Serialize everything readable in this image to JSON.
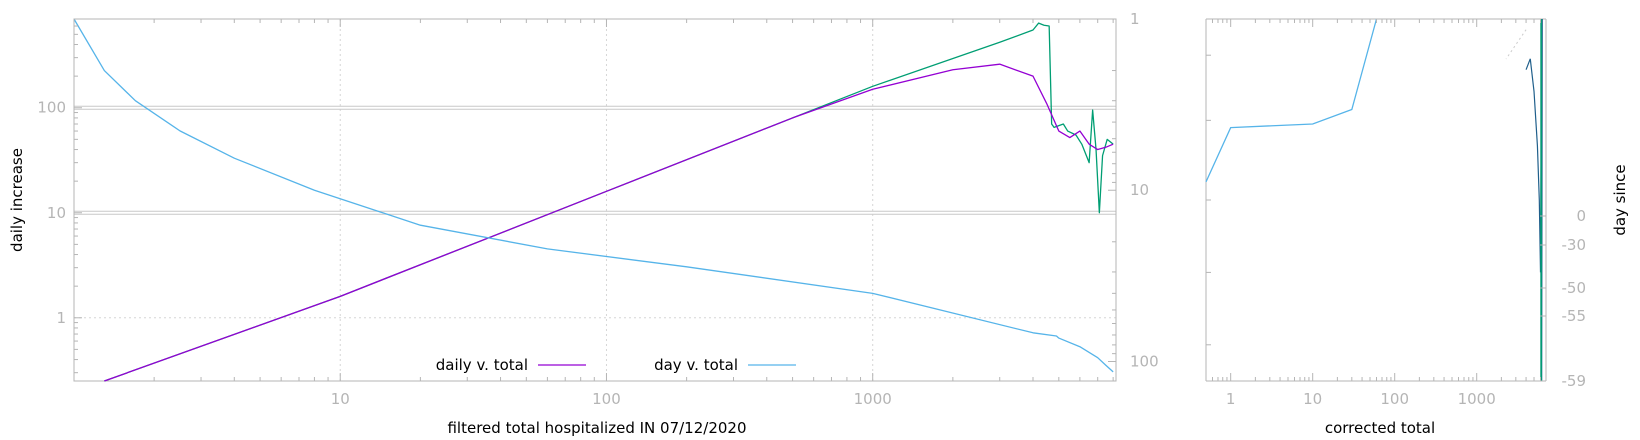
{
  "colors": {
    "axis": "#b5b5b5",
    "grid": "#d6d6d6",
    "daily_v_total": "#9400d3",
    "day_v_total": "#56b4e9",
    "raw_daily": "#009e73",
    "blend": "#1f5f8b"
  },
  "chart_data": [
    {
      "type": "line",
      "title": "",
      "xlabel": "filtered total hospitalized IN 07/12/2020",
      "ylabel": "daily increase",
      "y2label": "",
      "xscale": "log",
      "yscale": "log",
      "y2scale": "log",
      "y2reversed": true,
      "xlim": [
        1,
        8200
      ],
      "ylim": [
        0.25,
        700
      ],
      "y2lim": [
        1,
        130
      ],
      "xticks": [
        10,
        100,
        1000
      ],
      "xtick_labels": [
        "10",
        "100",
        "1000"
      ],
      "yticks": [
        1,
        10,
        100
      ],
      "ytick_labels": [
        "1",
        "10",
        "100"
      ],
      "y2ticks": [
        1,
        10,
        100
      ],
      "y2tick_labels": [
        "1",
        "10",
        "100"
      ],
      "grid": true,
      "legend_position": "bottom-center",
      "series": [
        {
          "name": "daily v. total",
          "axis": "y",
          "x": [
            1.3,
            10,
            100,
            500,
            1000,
            2000,
            3000,
            4000,
            4500,
            5000,
            5500,
            6000,
            6500,
            7000,
            7500,
            8000
          ],
          "y": [
            0.24,
            1.6,
            16,
            80,
            150,
            230,
            260,
            200,
            110,
            60,
            52,
            60,
            45,
            40,
            42,
            45
          ]
        },
        {
          "name": "day v. total",
          "axis": "y2",
          "x": [
            1,
            1.3,
            1.7,
            2.5,
            4,
            8,
            20,
            60,
            200,
            1000,
            4000,
            4900,
            5000,
            6000,
            7000,
            7500,
            8000
          ],
          "y2": [
            1,
            2,
            3,
            4.5,
            6.5,
            10,
            16,
            22,
            28,
            40,
            68,
            71,
            73,
            82,
            95,
            105,
            115
          ]
        },
        {
          "name": "",
          "axis": "y",
          "x": [
            1.3,
            10,
            100,
            1000,
            3000,
            4000,
            4200,
            4400,
            4600,
            4700,
            4800,
            5200,
            5400,
            5800,
            6100,
            6500,
            6700,
            6900,
            7100,
            7300,
            7600,
            8000
          ],
          "y": [
            0.24,
            1.6,
            16,
            160,
            420,
            550,
            640,
            610,
            600,
            70,
            65,
            70,
            60,
            55,
            45,
            30,
            95,
            40,
            10,
            35,
            50,
            45
          ]
        }
      ]
    },
    {
      "type": "line",
      "title": "",
      "xlabel": "corrected total",
      "ylabel": "",
      "y2label": "day since",
      "xscale": "log",
      "xlim": [
        0.5,
        7000
      ],
      "xticks": [
        1,
        10,
        100,
        1000
      ],
      "xtick_labels": [
        "1",
        "10",
        "100",
        "1000"
      ],
      "y2ticks": [
        0,
        -30,
        -50,
        -55,
        -59
      ],
      "y2tick_labels": [
        "0",
        "-30",
        "-50",
        "-55",
        "-59"
      ],
      "series": [
        {
          "name": "",
          "axis": "y",
          "x": [
            0.5,
            1,
            10,
            30,
            60
          ],
          "y": [
            0.55,
            0.7,
            0.71,
            0.75,
            1.0
          ]
        },
        {
          "name": "",
          "axis": "y",
          "x": [
            4000,
            4500,
            5000,
            5500,
            5800,
            6000,
            6100,
            6200,
            6300
          ],
          "y": [
            0.86,
            0.89,
            0.8,
            0.65,
            0.5,
            0.3,
            0.6,
            0.0,
            1.0
          ]
        }
      ]
    }
  ]
}
